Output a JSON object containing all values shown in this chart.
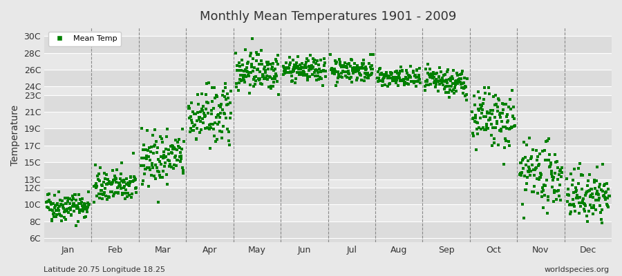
{
  "title": "Monthly Mean Temperatures 1901 - 2009",
  "ylabel": "Temperature",
  "legend_label": "Mean Temp",
  "dot_color": "#008000",
  "bg_color": "#e8e8e8",
  "plot_bg_color": "#e8e8e8",
  "stripe_colors": [
    "#dcdcdc",
    "#e8e8e8"
  ],
  "yticks": [
    6,
    8,
    10,
    12,
    13,
    15,
    17,
    19,
    21,
    23,
    24,
    26,
    28,
    30
  ],
  "ytick_labels": [
    "6C",
    "8C",
    "10C",
    "12C",
    "13C",
    "15C",
    "17C",
    "19C",
    "21C",
    "23C",
    "24C",
    "26C",
    "28C",
    "30C"
  ],
  "ylim": [
    5.5,
    31
  ],
  "months": [
    "Jan",
    "Feb",
    "Mar",
    "Apr",
    "May",
    "Jun",
    "Jul",
    "Aug",
    "Sep",
    "Oct",
    "Nov",
    "Dec"
  ],
  "month_means": [
    9.8,
    12.2,
    15.5,
    20.5,
    26.0,
    26.0,
    26.0,
    25.0,
    24.5,
    20.0,
    13.5,
    11.0
  ],
  "month_stds": [
    0.9,
    1.0,
    1.6,
    1.8,
    1.2,
    0.7,
    0.7,
    0.6,
    0.8,
    1.8,
    1.8,
    1.5
  ],
  "month_trend": [
    0.0,
    0.0,
    0.3,
    0.5,
    0.0,
    0.0,
    0.0,
    -0.1,
    -0.3,
    -0.5,
    -0.3,
    0.0
  ],
  "n_years": 109,
  "subtitle_left": "Latitude 20.75 Longitude 18.25",
  "subtitle_right": "worldspecies.org",
  "font_color": "#333333",
  "grid_color": "#ffffff",
  "dashed_line_color": "#888888"
}
